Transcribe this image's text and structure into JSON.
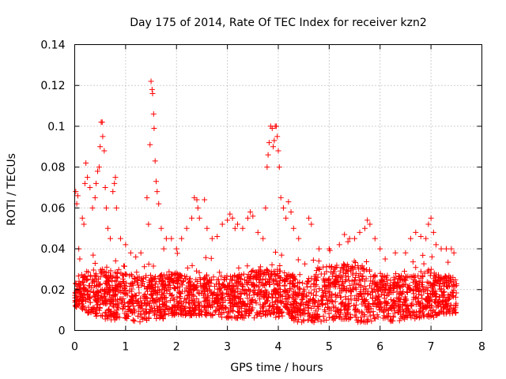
{
  "chart_data": {
    "type": "scatter",
    "title": "Day 175 of 2014, Rate Of TEC Index for receiver kzn2",
    "xlabel": "GPS time / hours",
    "ylabel": "ROTI / TECUs",
    "xlim": [
      0,
      8
    ],
    "ylim": [
      0,
      0.14
    ],
    "x_ticks": [
      "0",
      "1",
      "2",
      "3",
      "4",
      "5",
      "6",
      "7",
      "8"
    ],
    "y_ticks": [
      "0",
      "0.02",
      "0.04",
      "0.06",
      "0.08",
      "0.1",
      "0.12",
      "0.14"
    ],
    "grid": true,
    "marker": "+",
    "color": "#ff0000",
    "series": [
      {
        "name": "ROTI",
        "points": [
          [
            0.02,
            0.068
          ],
          [
            0.04,
            0.062
          ],
          [
            0.06,
            0.066
          ],
          [
            0.08,
            0.04
          ],
          [
            0.1,
            0.035
          ],
          [
            0.15,
            0.055
          ],
          [
            0.18,
            0.052
          ],
          [
            0.2,
            0.072
          ],
          [
            0.22,
            0.082
          ],
          [
            0.25,
            0.075
          ],
          [
            0.3,
            0.07
          ],
          [
            0.35,
            0.06
          ],
          [
            0.4,
            0.065
          ],
          [
            0.42,
            0.072
          ],
          [
            0.45,
            0.078
          ],
          [
            0.48,
            0.08
          ],
          [
            0.5,
            0.09
          ],
          [
            0.52,
            0.102
          ],
          [
            0.54,
            0.102
          ],
          [
            0.55,
            0.095
          ],
          [
            0.58,
            0.088
          ],
          [
            0.6,
            0.07
          ],
          [
            0.62,
            0.06
          ],
          [
            0.65,
            0.05
          ],
          [
            0.7,
            0.045
          ],
          [
            0.75,
            0.068
          ],
          [
            0.78,
            0.072
          ],
          [
            0.8,
            0.075
          ],
          [
            0.82,
            0.06
          ],
          [
            0.9,
            0.045
          ],
          [
            1.0,
            0.042
          ],
          [
            1.1,
            0.038
          ],
          [
            1.2,
            0.036
          ],
          [
            1.3,
            0.038
          ],
          [
            1.42,
            0.065
          ],
          [
            1.45,
            0.052
          ],
          [
            1.48,
            0.091
          ],
          [
            1.5,
            0.122
          ],
          [
            1.52,
            0.118
          ],
          [
            1.53,
            0.116
          ],
          [
            1.55,
            0.106
          ],
          [
            1.56,
            0.099
          ],
          [
            1.58,
            0.083
          ],
          [
            1.6,
            0.073
          ],
          [
            1.62,
            0.068
          ],
          [
            1.65,
            0.062
          ],
          [
            1.7,
            0.05
          ],
          [
            1.75,
            0.04
          ],
          [
            1.8,
            0.045
          ],
          [
            1.9,
            0.045
          ],
          [
            2.0,
            0.04
          ],
          [
            2.1,
            0.045
          ],
          [
            2.2,
            0.05
          ],
          [
            2.3,
            0.055
          ],
          [
            2.35,
            0.065
          ],
          [
            2.4,
            0.064
          ],
          [
            2.42,
            0.06
          ],
          [
            2.45,
            0.055
          ],
          [
            2.55,
            0.064
          ],
          [
            2.6,
            0.05
          ],
          [
            2.7,
            0.045
          ],
          [
            2.8,
            0.046
          ],
          [
            2.9,
            0.052
          ],
          [
            3.0,
            0.054
          ],
          [
            3.05,
            0.057
          ],
          [
            3.1,
            0.055
          ],
          [
            3.15,
            0.05
          ],
          [
            3.2,
            0.052
          ],
          [
            3.3,
            0.05
          ],
          [
            3.4,
            0.055
          ],
          [
            3.45,
            0.058
          ],
          [
            3.5,
            0.056
          ],
          [
            3.6,
            0.048
          ],
          [
            3.7,
            0.045
          ],
          [
            3.75,
            0.06
          ],
          [
            3.78,
            0.08
          ],
          [
            3.8,
            0.086
          ],
          [
            3.82,
            0.092
          ],
          [
            3.85,
            0.1
          ],
          [
            3.88,
            0.099
          ],
          [
            3.9,
            0.09
          ],
          [
            3.92,
            0.093
          ],
          [
            3.94,
            0.1
          ],
          [
            3.96,
            0.1
          ],
          [
            3.98,
            0.095
          ],
          [
            4.0,
            0.088
          ],
          [
            4.02,
            0.08
          ],
          [
            4.05,
            0.065
          ],
          [
            4.1,
            0.06
          ],
          [
            4.15,
            0.055
          ],
          [
            4.2,
            0.063
          ],
          [
            4.25,
            0.058
          ],
          [
            4.3,
            0.05
          ],
          [
            4.4,
            0.045
          ],
          [
            4.6,
            0.055
          ],
          [
            4.65,
            0.052
          ],
          [
            4.8,
            0.04
          ],
          [
            5.0,
            0.04
          ],
          [
            5.2,
            0.042
          ],
          [
            5.3,
            0.047
          ],
          [
            5.4,
            0.045
          ],
          [
            5.5,
            0.045
          ],
          [
            5.6,
            0.048
          ],
          [
            5.7,
            0.05
          ],
          [
            5.75,
            0.054
          ],
          [
            5.8,
            0.052
          ],
          [
            5.9,
            0.045
          ],
          [
            6.0,
            0.04
          ],
          [
            6.1,
            0.035
          ],
          [
            6.3,
            0.038
          ],
          [
            6.5,
            0.038
          ],
          [
            6.6,
            0.045
          ],
          [
            6.7,
            0.048
          ],
          [
            6.8,
            0.046
          ],
          [
            6.9,
            0.045
          ],
          [
            6.95,
            0.052
          ],
          [
            7.0,
            0.055
          ],
          [
            7.05,
            0.048
          ],
          [
            7.1,
            0.042
          ],
          [
            7.2,
            0.04
          ],
          [
            7.3,
            0.04
          ],
          [
            7.4,
            0.04
          ],
          [
            7.45,
            0.038
          ]
        ]
      }
    ],
    "band_profile": [
      [
        0.0,
        0.012,
        0.022
      ],
      [
        0.25,
        0.008,
        0.03
      ],
      [
        0.5,
        0.006,
        0.03
      ],
      [
        0.75,
        0.005,
        0.03
      ],
      [
        1.0,
        0.006,
        0.028
      ],
      [
        1.25,
        0.003,
        0.026
      ],
      [
        1.5,
        0.006,
        0.028
      ],
      [
        1.75,
        0.005,
        0.028
      ],
      [
        2.0,
        0.008,
        0.028
      ],
      [
        2.25,
        0.007,
        0.026
      ],
      [
        2.5,
        0.007,
        0.026
      ],
      [
        2.75,
        0.007,
        0.028
      ],
      [
        3.0,
        0.006,
        0.026
      ],
      [
        3.25,
        0.006,
        0.028
      ],
      [
        3.5,
        0.006,
        0.03
      ],
      [
        3.75,
        0.007,
        0.03
      ],
      [
        4.0,
        0.006,
        0.03
      ],
      [
        4.25,
        0.005,
        0.028
      ],
      [
        4.4,
        0.004,
        0.025
      ],
      [
        4.5,
        0.004,
        0.024
      ],
      [
        4.75,
        0.004,
        0.03
      ],
      [
        5.0,
        0.005,
        0.032
      ],
      [
        5.25,
        0.005,
        0.032
      ],
      [
        5.5,
        0.004,
        0.034
      ],
      [
        5.75,
        0.004,
        0.03
      ],
      [
        6.0,
        0.005,
        0.028
      ],
      [
        6.25,
        0.004,
        0.026
      ],
      [
        6.5,
        0.005,
        0.028
      ],
      [
        6.75,
        0.006,
        0.028
      ],
      [
        7.0,
        0.006,
        0.03
      ],
      [
        7.25,
        0.008,
        0.028
      ],
      [
        7.5,
        0.008,
        0.026
      ]
    ]
  }
}
